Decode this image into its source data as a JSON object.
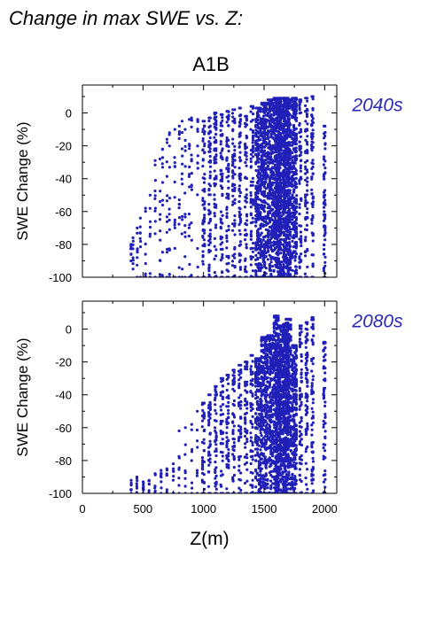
{
  "header": {
    "title": "Change in max SWE vs. Z:"
  },
  "scenario_label": "A1B",
  "colors": {
    "points": "#2020b8",
    "panel_label": "#2a2ab8",
    "axis": "#000000"
  },
  "chart_data": [
    {
      "type": "scatter",
      "panel_label": "2040s",
      "ylabel": "SWE Change (%)",
      "xlabel": "",
      "xlim": [
        0,
        2100
      ],
      "ylim": [
        -100,
        17
      ],
      "xticks": [
        0,
        500,
        1000,
        1500,
        2000
      ],
      "yticks": [
        0,
        -20,
        -40,
        -60,
        -80,
        -100
      ],
      "show_x_tick_labels": false,
      "grid": false,
      "legend": "none",
      "series": [
        {
          "x": [
            400,
            420,
            450,
            480,
            520,
            560,
            600,
            640,
            660,
            700,
            720,
            760,
            800,
            820,
            850,
            880,
            900,
            950,
            1000,
            1050,
            1100,
            1150,
            1200,
            1250,
            1300,
            1350,
            1400,
            1450,
            1500,
            1550,
            1600,
            1620,
            1650,
            1680,
            1700,
            1750,
            1800,
            1850,
            1900,
            2000
          ],
          "y_max": [
            -80,
            -76,
            -70,
            -64,
            -58,
            -50,
            -29,
            -28,
            -22,
            -16,
            -12,
            -10,
            -8,
            -5,
            -10,
            -4,
            -3,
            -4,
            -5,
            -3,
            0,
            -1,
            1,
            2,
            3,
            -2,
            4,
            3,
            6,
            8,
            9,
            8,
            9,
            9,
            8,
            9,
            8,
            9,
            10,
            -8
          ],
          "y_min": [
            -90,
            -95,
            -100,
            -100,
            -100,
            -100,
            -100,
            -100,
            -100,
            -100,
            -100,
            -100,
            -100,
            -100,
            -100,
            -100,
            -100,
            -100,
            -100,
            -100,
            -100,
            -100,
            -100,
            -100,
            -100,
            -100,
            -100,
            -100,
            -100,
            -100,
            -100,
            -100,
            -100,
            -100,
            -100,
            -100,
            -100,
            -100,
            -100,
            -100
          ]
        }
      ]
    },
    {
      "type": "scatter",
      "panel_label": "2080s",
      "ylabel": "SWE Change (%)",
      "xlabel": "Z(m)",
      "xlim": [
        0,
        2100
      ],
      "ylim": [
        -100,
        17
      ],
      "xticks": [
        0,
        500,
        1000,
        1500,
        2000
      ],
      "yticks": [
        0,
        -20,
        -40,
        -60,
        -80,
        -100
      ],
      "show_x_tick_labels": true,
      "grid": false,
      "legend": "none",
      "series": [
        {
          "x": [
            400,
            450,
            500,
            550,
            600,
            650,
            700,
            750,
            800,
            850,
            900,
            950,
            1000,
            1050,
            1100,
            1150,
            1200,
            1250,
            1300,
            1350,
            1400,
            1450,
            1500,
            1550,
            1600,
            1620,
            1650,
            1680,
            1700,
            1750,
            1800,
            1850,
            1900,
            2000
          ],
          "y_max": [
            -92,
            -90,
            -93,
            -92,
            -88,
            -86,
            -85,
            -82,
            -62,
            -60,
            -58,
            -50,
            -45,
            -40,
            -35,
            -30,
            -28,
            -25,
            -22,
            -20,
            -16,
            -18,
            -5,
            -4,
            8,
            -10,
            2,
            3,
            6,
            -10,
            2,
            4,
            7,
            -8
          ],
          "y_min": [
            -100,
            -100,
            -100,
            -100,
            -100,
            -100,
            -100,
            -100,
            -100,
            -100,
            -100,
            -100,
            -100,
            -100,
            -100,
            -100,
            -100,
            -100,
            -100,
            -100,
            -100,
            -100,
            -100,
            -100,
            -100,
            -100,
            -100,
            -100,
            -100,
            -100,
            -100,
            -100,
            -100,
            -100
          ]
        }
      ]
    }
  ]
}
